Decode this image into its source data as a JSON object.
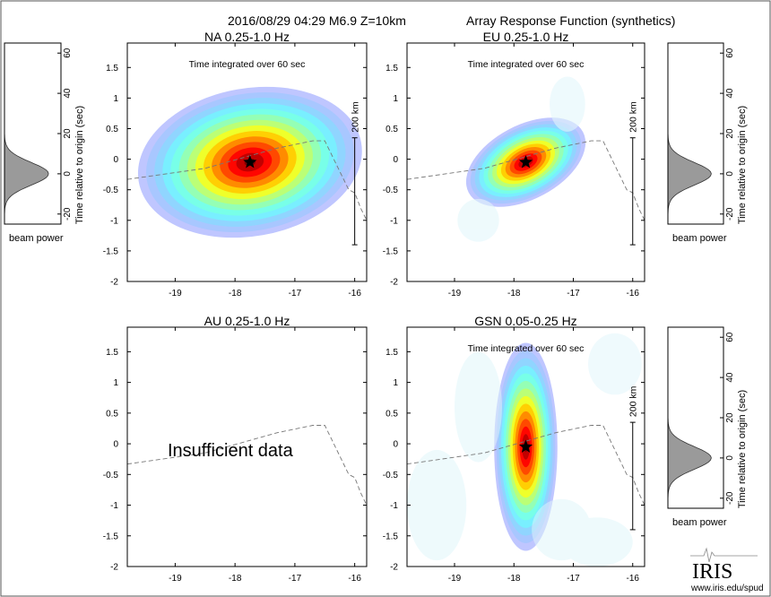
{
  "figure": {
    "header_left": "2016/08/29 04:29  M6.9  Z=10km",
    "header_right": "Array Response Function (synthetics)",
    "footer_logo": "IRIS",
    "footer_url": "www.iris.edu/spud"
  },
  "side_panel": {
    "ylabel": "Time relative to origin (sec)",
    "yticks": [
      60,
      40,
      20,
      0,
      -20
    ],
    "caption": "beam power"
  },
  "scale_bar_label": "200 km",
  "insufficient_data_label": "Insufficient data",
  "integration_note": "Time integrated over 60 sec",
  "chart_data": [
    {
      "type": "heatmap",
      "panel": "NA",
      "title": "NA  0.25-1.0 Hz",
      "annotation": "Time integrated over 60 sec",
      "xlim": [
        -19.8,
        -15.8
      ],
      "ylim": [
        -2,
        1.9
      ],
      "xticks": [
        -19,
        -18,
        -17,
        -16
      ],
      "yticks": [
        1.5,
        1,
        0.5,
        0,
        -0.5,
        -1,
        -1.5,
        -2
      ],
      "star": {
        "x": -17.75,
        "y": -0.05
      },
      "peak": {
        "x": -17.75,
        "y": -0.05,
        "sx": 0.78,
        "sy": 0.5,
        "rotation_deg": 10
      },
      "scale_bar": {
        "x": -16,
        "y_top": 0.35,
        "y_bottom": -1.4,
        "label": "200 km"
      },
      "coastline": [
        [
          -19.8,
          -0.33
        ],
        [
          -18.5,
          -0.15
        ],
        [
          -17.3,
          0.18
        ],
        [
          -16.7,
          0.3
        ],
        [
          -16.5,
          0.3
        ],
        [
          -16.1,
          -0.5
        ],
        [
          -16.0,
          -0.55
        ],
        [
          -15.9,
          -0.8
        ],
        [
          -15.8,
          -1.0
        ]
      ],
      "beam_power": {
        "peak_time": 0,
        "width": 8
      }
    },
    {
      "type": "heatmap",
      "panel": "EU",
      "title": "EU  0.25-1.0 Hz",
      "annotation": "Time integrated over 60 sec",
      "xlim": [
        -19.8,
        -15.8
      ],
      "ylim": [
        -2,
        1.9
      ],
      "xticks": [
        -19,
        -18,
        -17,
        -16
      ],
      "yticks": [
        1.5,
        1,
        0.5,
        0,
        -0.5,
        -1,
        -1.5,
        -2
      ],
      "star": {
        "x": -17.8,
        "y": -0.05
      },
      "peak": {
        "x": -17.8,
        "y": -0.05,
        "sx": 0.45,
        "sy": 0.25,
        "rotation_deg": 28
      },
      "scale_bar": {
        "x": -16,
        "y_top": 0.35,
        "y_bottom": -1.4,
        "label": "200 km"
      },
      "coastline": [
        [
          -19.8,
          -0.33
        ],
        [
          -18.5,
          -0.15
        ],
        [
          -17.3,
          0.18
        ],
        [
          -16.7,
          0.3
        ],
        [
          -16.5,
          0.3
        ],
        [
          -16.1,
          -0.5
        ],
        [
          -16.0,
          -0.55
        ],
        [
          -15.9,
          -0.8
        ],
        [
          -15.8,
          -1.0
        ]
      ],
      "beam_power": {
        "peak_time": 0,
        "width": 8
      }
    },
    {
      "type": "heatmap",
      "panel": "AU",
      "title": "AU  0.25-1.0 Hz",
      "annotation": "",
      "empty_message": "Insufficient data",
      "xlim": [
        -19.8,
        -15.8
      ],
      "ylim": [
        -2,
        1.9
      ],
      "xticks": [
        -19,
        -18,
        -17,
        -16
      ],
      "yticks": [
        1.5,
        1,
        0.5,
        0,
        -0.5,
        -1,
        -1.5,
        -2
      ],
      "coastline": [
        [
          -19.8,
          -0.33
        ],
        [
          -18.5,
          -0.15
        ],
        [
          -17.3,
          0.18
        ],
        [
          -16.7,
          0.3
        ],
        [
          -16.5,
          0.3
        ],
        [
          -16.1,
          -0.5
        ],
        [
          -16.0,
          -0.55
        ],
        [
          -15.9,
          -0.8
        ],
        [
          -15.8,
          -1.0
        ]
      ]
    },
    {
      "type": "heatmap",
      "panel": "GSN",
      "title": "GSN  0.05-0.25 Hz",
      "annotation": "Time integrated over 60 sec",
      "xlim": [
        -19.8,
        -15.8
      ],
      "ylim": [
        -2,
        1.9
      ],
      "xticks": [
        -19,
        -18,
        -17,
        -16
      ],
      "yticks": [
        1.5,
        1,
        0.5,
        0,
        -0.5,
        -1,
        -1.5,
        -2
      ],
      "star": {
        "x": -17.8,
        "y": -0.05
      },
      "peak": {
        "x": -17.8,
        "y": -0.05,
        "sx": 0.22,
        "sy": 0.7,
        "rotation_deg": 0
      },
      "scale_bar": {
        "x": -16,
        "y_top": 0.35,
        "y_bottom": -1.4,
        "label": "200 km"
      },
      "coastline": [
        [
          -19.8,
          -0.33
        ],
        [
          -18.5,
          -0.15
        ],
        [
          -17.3,
          0.18
        ],
        [
          -16.7,
          0.3
        ],
        [
          -16.5,
          0.3
        ],
        [
          -16.1,
          -0.5
        ],
        [
          -16.0,
          -0.55
        ],
        [
          -15.9,
          -0.8
        ],
        [
          -15.8,
          -1.0
        ]
      ],
      "beam_power": {
        "peak_time": 0,
        "width": 8
      }
    }
  ]
}
